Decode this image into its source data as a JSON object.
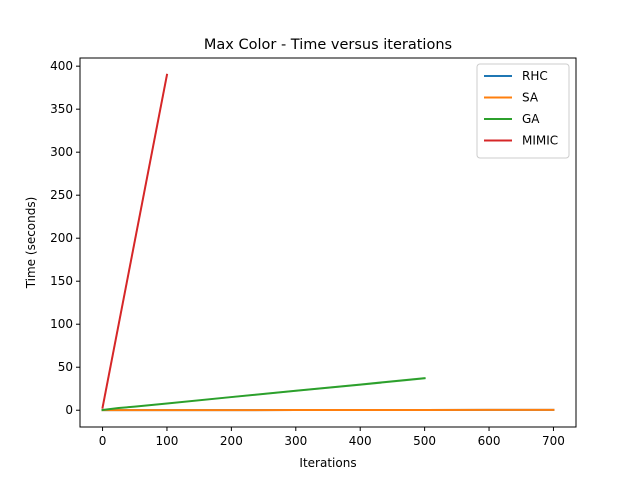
{
  "chart_data": {
    "type": "line",
    "title": "Max Color - Time versus iterations",
    "xlabel": "Iterations",
    "ylabel": "Time (seconds)",
    "xlim": [
      -35,
      735
    ],
    "ylim": [
      -19.5,
      409.5
    ],
    "xticks": [
      0,
      100,
      200,
      300,
      400,
      500,
      600,
      700
    ],
    "yticks": [
      0,
      50,
      100,
      150,
      200,
      250,
      300,
      350,
      400
    ],
    "grid": false,
    "legend_position": "top-right",
    "series": [
      {
        "name": "RHC",
        "color": "#1f77b4",
        "x": [
          0,
          100,
          200,
          300,
          400,
          500,
          600,
          700
        ],
        "y": [
          0.05,
          0.1,
          0.15,
          0.2,
          0.25,
          0.3,
          0.35,
          0.4
        ]
      },
      {
        "name": "SA",
        "color": "#ff7f0e",
        "x": [
          0,
          100,
          200,
          300,
          400,
          500,
          600,
          700
        ],
        "y": [
          0.05,
          0.1,
          0.15,
          0.2,
          0.25,
          0.3,
          0.35,
          0.4
        ]
      },
      {
        "name": "GA",
        "color": "#2ca02c",
        "x": [
          0,
          25,
          50,
          100,
          200,
          300,
          400,
          500
        ],
        "y": [
          0.3,
          2.6,
          4.2,
          7.8,
          15.3,
          22.6,
          29.8,
          37.2
        ],
        "band_low": [
          0.2,
          2.3,
          3.8,
          7.2,
          14.4,
          21.5,
          28.5,
          35.8
        ],
        "band_high": [
          0.4,
          2.9,
          4.6,
          8.4,
          16.2,
          23.7,
          31.1,
          38.6
        ]
      },
      {
        "name": "MIMIC",
        "color": "#d62728",
        "x": [
          0,
          100
        ],
        "y": [
          3,
          390
        ]
      }
    ]
  }
}
